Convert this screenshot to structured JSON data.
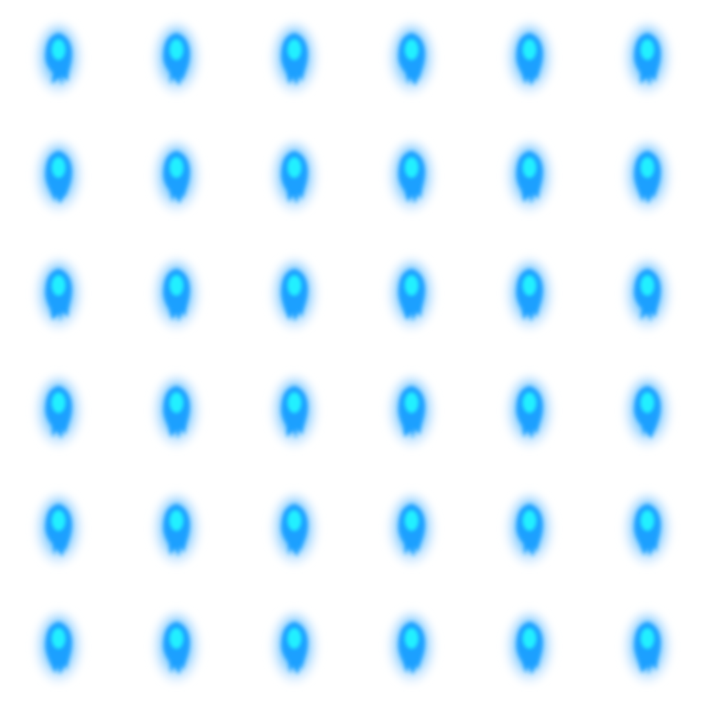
{
  "sheet": {
    "background": "#ffffff",
    "rows": 6,
    "columns": 6,
    "sprite": "blue-flame-icon",
    "colors": {
      "core": "#20f0ff",
      "body": "#1aa0ff",
      "glow": "#6cc4ff",
      "halo": "#dff0ff"
    }
  }
}
